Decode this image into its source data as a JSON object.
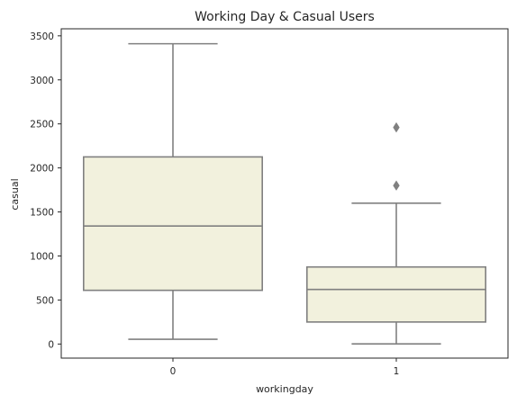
{
  "chart_data": {
    "type": "box",
    "title": "Working Day & Casual Users",
    "xlabel": "workingday",
    "ylabel": "casual",
    "categories": [
      "0",
      "1"
    ],
    "ylim": [
      -160,
      3580
    ],
    "yticks": [
      0,
      500,
      1000,
      1500,
      2000,
      2500,
      3000,
      3500
    ],
    "grid": false,
    "boxes": [
      {
        "category": "0",
        "whisker_low": 54,
        "q1": 610,
        "median": 1340,
        "q3": 2125,
        "whisker_high": 3410,
        "outliers": []
      },
      {
        "category": "1",
        "whisker_low": 2,
        "q1": 250,
        "median": 620,
        "q3": 875,
        "whisker_high": 1600,
        "outliers": [
          1800,
          2460
        ]
      }
    ],
    "colors": {
      "box_fill": "#f2f1dd",
      "box_edge": "#808080",
      "axes": "#262626"
    }
  }
}
